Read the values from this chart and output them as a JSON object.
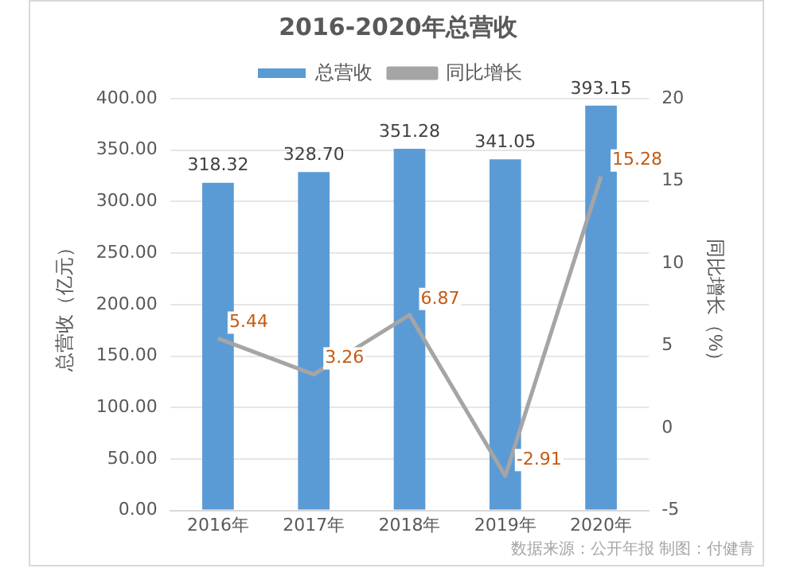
{
  "chart_data": {
    "type": "bar",
    "title": "2016-2020年总营收",
    "categories": [
      "2016年",
      "2017年",
      "2018年",
      "2019年",
      "2020年"
    ],
    "series": [
      {
        "name": "总营收",
        "color": "#5b9bd5",
        "values": [
          318.32,
          328.7,
          351.28,
          341.05,
          393.15
        ],
        "value_labels": [
          "318.32",
          "328.70",
          "351.28",
          "341.05",
          "393.15"
        ]
      },
      {
        "name": "同比增长",
        "type": "line",
        "axis": "y2",
        "color": "#a5a5a5",
        "values": [
          5.44,
          3.26,
          6.87,
          -2.91,
          15.28
        ],
        "value_labels": [
          "5.44",
          "3.26",
          "6.87",
          "-2.91",
          "15.28"
        ]
      }
    ],
    "ylabel": "总营收（亿元）",
    "y2label": "同比增长（%）",
    "ylim": [
      0,
      400
    ],
    "yticks": [
      {
        "value": 0,
        "label": "0.00"
      },
      {
        "value": 50,
        "label": "50.00"
      },
      {
        "value": 100,
        "label": "100.00"
      },
      {
        "value": 150,
        "label": "150.00"
      },
      {
        "value": 200,
        "label": "200.00"
      },
      {
        "value": 250,
        "label": "250.00"
      },
      {
        "value": 300,
        "label": "300.00"
      },
      {
        "value": 350,
        "label": "350.00"
      },
      {
        "value": 400,
        "label": "400.00"
      }
    ],
    "y2lim": [
      -5,
      20
    ],
    "y2ticks": [
      -5,
      0,
      5,
      10,
      15,
      20
    ],
    "grid": "y",
    "legend": "top",
    "marker": "none",
    "annotations": [
      "数据来源：公开年报 制图：付健青"
    ]
  }
}
